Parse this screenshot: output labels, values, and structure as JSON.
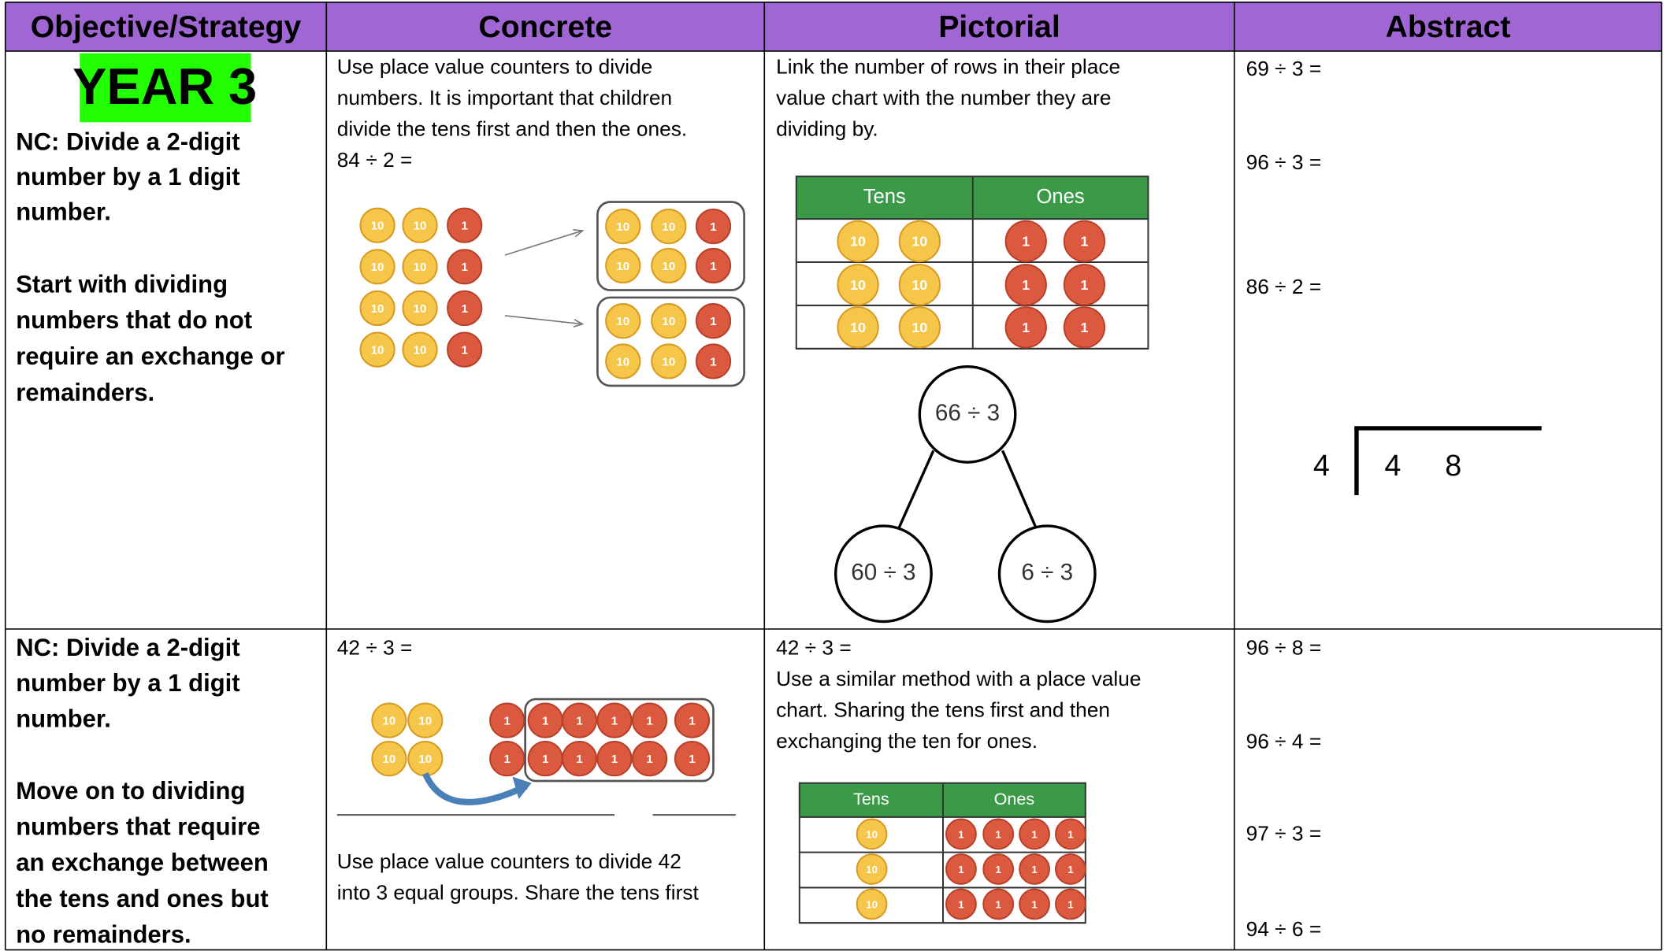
{
  "header": [
    "Objective/Strategy",
    "Concrete",
    "Pictorial",
    "Abstract"
  ],
  "counters": {
    "ten": "10",
    "one": "1"
  },
  "rows": [
    {
      "year": "YEAR 3",
      "objective": [
        "NC: Divide a 2-digit",
        "number by a 1 digit",
        "number."
      ],
      "strategy": [
        "Start with dividing",
        "numbers that do not",
        "require an exchange or",
        "remainders."
      ],
      "concrete": {
        "text": [
          "Use place value counters to divide",
          "numbers. It is important that children",
          "divide the tens first and then the ones.",
          "84 ÷ 2 ="
        ]
      },
      "pictorial": {
        "text": [
          "Link the number of rows in their place",
          "value chart with the number they are",
          "dividing by."
        ],
        "chart_headers": [
          "Tens",
          "Ones"
        ],
        "tree": {
          "root": "66 ÷ 3",
          "left": "60 ÷ 3",
          "right": "6 ÷ 3"
        }
      },
      "abstract": [
        "69 ÷ 3 =",
        "96 ÷ 3 =",
        "86 ÷ 2 ="
      ],
      "bus_stop": {
        "divisor": "4",
        "dividend": [
          "4",
          "8"
        ]
      }
    },
    {
      "objective": [
        "NC: Divide a 2-digit",
        "number by a 1 digit",
        "number."
      ],
      "strategy": [
        "Move on to dividing",
        "numbers that require",
        "an exchange between",
        "the tens and ones but",
        "no remainders."
      ],
      "concrete": {
        "text": [
          "42 ÷ 3 ="
        ],
        "caption": [
          "Use place value counters to divide 42",
          "into 3 equal groups. Share the tens first"
        ]
      },
      "pictorial": {
        "text": [
          "42 ÷ 3 =",
          "Use a similar method with a place value",
          "chart. Sharing the tens first and then",
          "exchanging the ten for ones."
        ],
        "chart_headers": [
          "Tens",
          "Ones"
        ]
      },
      "abstract": [
        "96 ÷ 8 =",
        "96 ÷ 4 =",
        "97 ÷ 3 =",
        "94 ÷ 6 ="
      ]
    }
  ]
}
